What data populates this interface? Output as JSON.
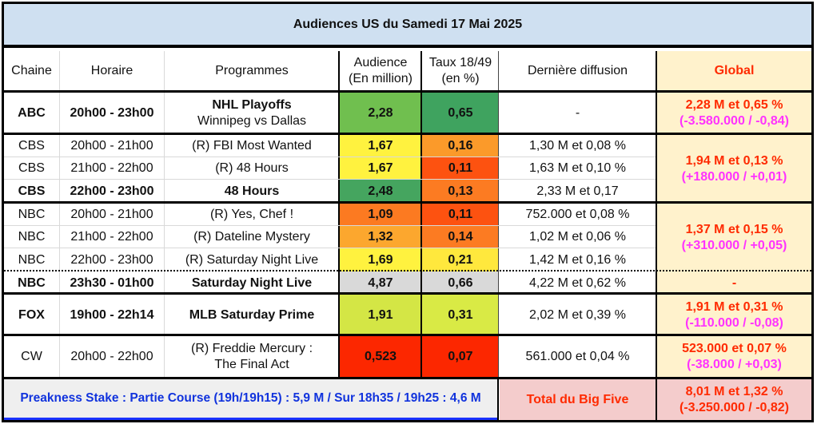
{
  "title": "Audiences US du Samedi 17 Mai 2025",
  "headers": {
    "chaine": "Chaine",
    "horaire": "Horaire",
    "programmes": "Programmes",
    "audience_l1": "Audience",
    "audience_l2": "(En million)",
    "taux_l1": "Taux 18/49",
    "taux_l2": "(en %)",
    "derniere": "Dernière diffusion",
    "global": "Global"
  },
  "rows": [
    {
      "chaine": "ABC",
      "horaire": "20h00 - 23h00",
      "programme": "NHL Playoffs",
      "programme_sub": "Winnipeg vs Dallas",
      "audience": "2,28",
      "taux": "0,65",
      "derniere": "-",
      "audience_color": "#70bf4f",
      "taux_color": "#3fa35f"
    },
    {
      "chaine": "CBS",
      "horaire": "20h00 - 21h00",
      "programme": "(R) FBI Most Wanted",
      "audience": "1,67",
      "taux": "0,16",
      "derniere": "1,30 M et 0,08 %",
      "audience_color": "#fff23f",
      "taux_color": "#fb9a2a"
    },
    {
      "chaine": "CBS",
      "horaire": "21h00 - 22h00",
      "programme": "(R) 48 Hours",
      "audience": "1,67",
      "taux": "0,11",
      "derniere": "1,63 M et 0,10 %",
      "audience_color": "#fff23f",
      "taux_color": "#fd5210"
    },
    {
      "chaine": "CBS",
      "horaire": "22h00 - 23h00",
      "programme": "48 Hours",
      "audience": "2,48",
      "taux": "0,13",
      "derniere": "2,33 M et 0,17",
      "audience_color": "#45a55f",
      "taux_color": "#fc7b22"
    },
    {
      "chaine": "NBC",
      "horaire": "20h00 - 21h00",
      "programme": "(R) Yes, Chef !",
      "audience": "1,09",
      "taux": "0,11",
      "derniere": "752.000 et 0,08 %",
      "audience_color": "#fc7a21",
      "taux_color": "#fd5210"
    },
    {
      "chaine": "NBC",
      "horaire": "21h00 - 22h00",
      "programme": "(R) Dateline Mystery",
      "audience": "1,32",
      "taux": "0,14",
      "derniere": "1,02 M et 0,06 %",
      "audience_color": "#fca72e",
      "taux_color": "#fc7b22"
    },
    {
      "chaine": "NBC",
      "horaire": "22h00 - 23h00",
      "programme": "(R) Saturday Night Live",
      "audience": "1,69",
      "taux": "0,21",
      "derniere": "1,42 M et 0,16 %",
      "audience_color": "#fff23f",
      "taux_color": "#ffe83d"
    },
    {
      "chaine": "NBC",
      "horaire": "23h30 - 01h00",
      "programme": "Saturday Night Live",
      "audience": "4,87",
      "taux": "0,66",
      "derniere": "4,22 M et 0,62 %",
      "audience_color": "#d9d9d9",
      "taux_color": "#d9d9d9"
    },
    {
      "chaine": "FOX",
      "horaire": "19h00 - 22h14",
      "programme": "MLB Saturday Prime",
      "audience": "1,91",
      "taux": "0,31",
      "derniere": "2,02 M et 0,39 %",
      "audience_color": "#d4e645",
      "taux_color": "#d9ea45"
    },
    {
      "chaine": "CW",
      "horaire": "20h00 - 22h00",
      "programme": "(R) Freddie Mercury :",
      "programme_sub": "The Final Act",
      "audience": "0,523",
      "taux": "0,07",
      "derniere": "561.000 et 0,04 %",
      "audience_color": "#fc2700",
      "taux_color": "#fc2700"
    }
  ],
  "globals": [
    {
      "main": "2,28 M et 0,65 %",
      "diff": "(-3.580.000 / -0,84)"
    },
    {
      "main": "1,94 M et 0,13 %",
      "diff": "(+180.000 / +0,01)"
    },
    {
      "main": "1,37 M et 0,15 %",
      "diff": "(+310.000 / +0,05)"
    },
    {
      "main": "-"
    },
    {
      "main": "1,91 M et 0,31 %",
      "diff": "(-110.000 / -0,08)"
    },
    {
      "main": "523.000 et 0,07 %",
      "diff": "(-38.000 / +0,03)"
    }
  ],
  "footer": {
    "note": "Preakness Stake : Partie Course (19h/19h15) : 5,9 M / Sur 18h35 / 19h25 : 4,6 M",
    "total_label": "Total du Big Five",
    "total_main": "8,01 M et 1,32 %",
    "total_diff": "(-3.250.000 / -0,82)"
  }
}
